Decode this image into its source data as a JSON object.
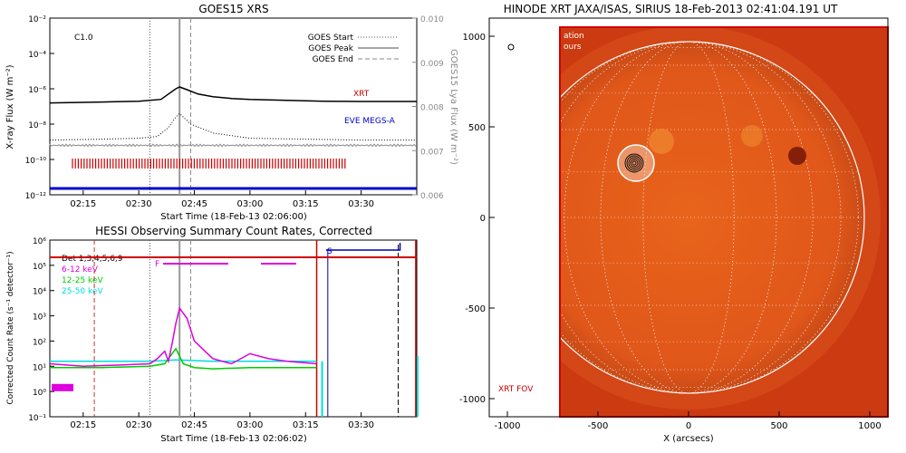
{
  "chart_data": [
    {
      "type": "line",
      "title": "GOES15 XRS",
      "xlabel": "Start Time (18-Feb-13 02:06:00)",
      "ylabel": "X-ray Flux (W m⁻²)",
      "ylabel_right": "GOES15 Lya Flux (W m⁻²)",
      "flare_class": "C1.0",
      "x_ticks": [
        "02:15",
        "02:30",
        "02:45",
        "03:00",
        "03:15",
        "03:30"
      ],
      "xlim": [
        "02:06",
        "03:45"
      ],
      "y_ticks_left": [
        "10⁻²",
        "10⁻⁴",
        "10⁻⁶",
        "10⁻⁸",
        "10⁻¹⁰",
        "10⁻¹²"
      ],
      "ylim_left_log10": [
        -12,
        -2
      ],
      "y_ticks_right": [
        "0.010",
        "0.009",
        "0.008",
        "0.007",
        "0.006"
      ],
      "ylim_right": [
        0.006,
        0.01
      ],
      "legend": [
        "GOES Start",
        "GOES Peak",
        "GOES End"
      ],
      "markers": {
        "goes_start": "02:33",
        "goes_peak": "02:41",
        "goes_end": "02:44"
      },
      "labels": {
        "xrt": "XRT",
        "eve": "EVE MEGS-A"
      },
      "colors": {
        "xrt": "#cc0000",
        "eve": "#0000cc",
        "curve": "#000000",
        "lya": "#888888"
      },
      "series": [
        {
          "x": [
            "02:06",
            "02:20",
            "02:30",
            "02:36",
            "02:38",
            "02:40",
            "02:41",
            "02:43",
            "02:46",
            "02:50",
            "02:55",
            "03:00",
            "03:10",
            "03:20",
            "03:30",
            "03:45"
          ],
          "log10_values": [
            -6.8,
            -6.75,
            -6.7,
            -6.6,
            -6.3,
            -6.0,
            -5.9,
            -6.05,
            -6.3,
            -6.45,
            -6.55,
            -6.6,
            -6.65,
            -6.7,
            -6.72,
            -6.72
          ]
        },
        {
          "x": [
            "02:06",
            "02:20",
            "02:30",
            "02:35",
            "02:38",
            "02:40",
            "02:41",
            "02:44",
            "02:50",
            "03:00",
            "03:15",
            "03:30",
            "03:45"
          ],
          "log10_values": [
            -8.9,
            -8.85,
            -8.8,
            -8.7,
            -8.2,
            -7.6,
            -7.4,
            -8.0,
            -8.5,
            -8.8,
            -8.85,
            -8.9,
            -8.9
          ]
        }
      ]
    },
    {
      "type": "line",
      "title": "HESSI Observing Summary Count Rates, Corrected",
      "xlabel": "Start Time (18-Feb-13 02:06:02)",
      "ylabel": "Corrected Count Rate (s⁻¹ detector⁻¹)",
      "x_ticks": [
        "02:15",
        "02:30",
        "02:45",
        "03:00",
        "03:15",
        "03:30"
      ],
      "xlim": [
        "02:06",
        "03:45"
      ],
      "y_ticks": [
        "10⁶",
        "10⁵",
        "10⁴",
        "10³",
        "10²",
        "10¹",
        "10⁰",
        "10⁻¹"
      ],
      "ylim_log10": [
        -1,
        6
      ],
      "detectors_label": "Det 1,3,4,5,6,9",
      "flag_labels": {
        "f": "F",
        "s": "S"
      },
      "series": [
        {
          "name": "6-12 keV",
          "color": "#dd00dd",
          "x": [
            "02:06",
            "02:15",
            "02:25",
            "02:33",
            "02:35",
            "02:37",
            "02:38",
            "02:39",
            "02:40",
            "02:41",
            "02:43",
            "02:45",
            "02:50",
            "02:55",
            "03:00",
            "03:05",
            "03:10",
            "03:18"
          ],
          "log10_values": [
            1.1,
            1.0,
            1.05,
            1.1,
            1.3,
            1.6,
            1.2,
            1.9,
            2.7,
            3.3,
            2.9,
            2.0,
            1.3,
            1.1,
            1.5,
            1.3,
            1.2,
            1.1
          ]
        },
        {
          "name": "12-25 keV",
          "color": "#00cc00",
          "x": [
            "02:06",
            "02:20",
            "02:33",
            "02:37",
            "02:40",
            "02:42",
            "02:45",
            "02:50",
            "03:00",
            "03:10",
            "03:18"
          ],
          "log10_values": [
            0.95,
            0.95,
            1.0,
            1.1,
            1.7,
            1.1,
            0.95,
            0.9,
            0.95,
            0.95,
            0.95
          ]
        },
        {
          "name": "25-50 keV",
          "color": "#00dddd",
          "x": [
            "02:06",
            "02:20",
            "02:33",
            "02:40",
            "02:50",
            "03:00",
            "03:10",
            "03:18"
          ],
          "log10_values": [
            1.2,
            1.2,
            1.2,
            1.25,
            1.2,
            1.2,
            1.2,
            1.2
          ]
        }
      ],
      "markers": {
        "start": "02:18",
        "peak": "02:41",
        "end": "02:44",
        "red_line_1": "03:18",
        "red_line_2": "03:44",
        "dashed_black": "03:40",
        "blue_line": "03:21"
      }
    },
    {
      "type": "heatmap",
      "title": "HINODE XRT JAXA/ISAS, SIRIUS 18-Feb-2013 02:41:04.191 UT",
      "xlabel": "X (arcsecs)",
      "ylabel": "",
      "x_ticks": [
        -1000,
        -500,
        0,
        500,
        1000
      ],
      "y_ticks": [
        1000,
        500,
        0,
        -500,
        -1000
      ],
      "xlim": [
        -1100,
        1100
      ],
      "ylim": [
        -1100,
        1100
      ],
      "solar_radius": 970,
      "fov_label": "XRT FOV",
      "fov_x_range": [
        -710,
        1100
      ],
      "fov_text": [
        "ation",
        "ours"
      ],
      "flare_center": [
        -290,
        300
      ],
      "colors": {
        "fov": "#d00000",
        "disk": "#e8641b",
        "limb": "#ffffff"
      }
    }
  ]
}
